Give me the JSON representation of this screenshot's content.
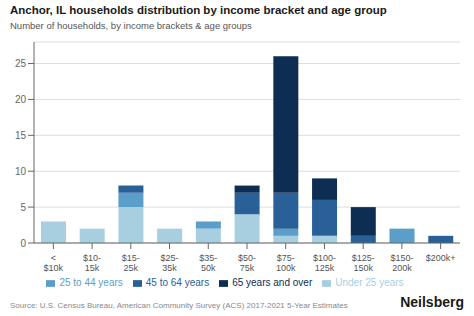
{
  "chart_data": {
    "type": "bar",
    "stacked": true,
    "title": "Anchor, IL households distribution by income bracket and age group",
    "subtitle": "Number of households, by income brackets & age groups",
    "annotations": [
      "Source: U.S. Census Bureau, American Community Survey (ACS) 2017-2021 5-Year Estimates",
      "Neilsberg"
    ],
    "categories": [
      "<\n$10k",
      "$10-\n15k",
      "$15-\n25k",
      "$25-\n35k",
      "$35-\n50k",
      "$50-\n75k",
      "$75-\n100k",
      "$100-\n125k",
      "$125-\n150k",
      "$150-\n200k",
      "$200k+"
    ],
    "series": [
      {
        "name": "Under 25 years",
        "color": "#a8cfe0",
        "values": [
          3,
          2,
          5,
          2,
          2,
          4,
          1,
          1,
          0,
          0,
          0
        ]
      },
      {
        "name": "25 to 44 years",
        "color": "#5b9ec9",
        "values": [
          0,
          0,
          2,
          0,
          1,
          0,
          1,
          0,
          0,
          2,
          0
        ]
      },
      {
        "name": "45 to 64 years",
        "color": "#2a6098",
        "values": [
          0,
          0,
          1,
          0,
          0,
          3,
          5,
          5,
          1,
          0,
          1
        ]
      },
      {
        "name": "65 years and over",
        "color": "#0d2d52",
        "values": [
          0,
          0,
          0,
          0,
          0,
          1,
          19,
          3,
          4,
          0,
          0
        ]
      }
    ],
    "ylim": [
      0,
      28
    ],
    "yticks": [
      0,
      5,
      10,
      15,
      20,
      25
    ],
    "grid": true,
    "legend": "bottom"
  }
}
